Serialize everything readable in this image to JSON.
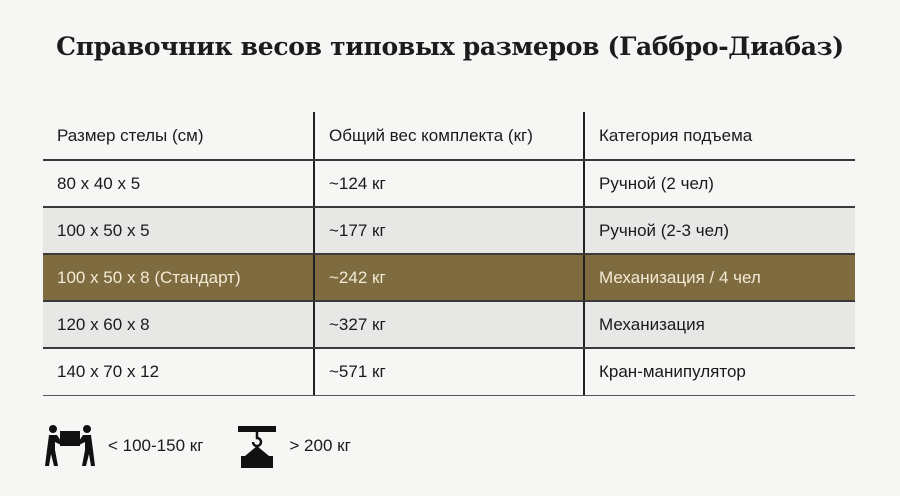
{
  "title": "Справочник весов типовых размеров (Габбро-Диабаз)",
  "table": {
    "headers": [
      "Размер стелы (см)",
      "Общий вес комплекта (кг)",
      "Категория подъема"
    ],
    "rows": [
      {
        "size": "80 x 40 x 5",
        "weight": "~124 кг",
        "category": "Ручной (2 чел)"
      },
      {
        "size": "100 x 50 x 5",
        "weight": "~177 кг",
        "category": "Ручной (2-3 чел)"
      },
      {
        "size": "100 x 50 x 8 (Стандарт)",
        "weight": "~242 кг",
        "category": "Механизация / 4 чел"
      },
      {
        "size": "120 x 60 x 8",
        "weight": "~327 кг",
        "category": "Механизация"
      },
      {
        "size": "140 x 70 x 12",
        "weight": "~571 кг",
        "category": "Кран-манипулятор"
      }
    ],
    "highlight_color": "#7e6b3f"
  },
  "legend": [
    {
      "icon": "two-people-carrying-icon",
      "label": "< 100-150 кг"
    },
    {
      "icon": "crane-hook-load-icon",
      "label": "> 200 кг"
    }
  ]
}
